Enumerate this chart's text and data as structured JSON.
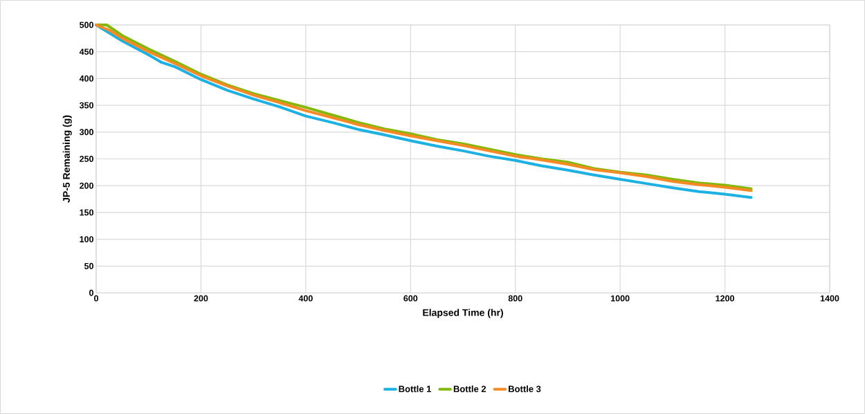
{
  "chart_data": {
    "type": "line",
    "xlabel": "Elapsed Time (hr)",
    "ylabel": "JP-5 Remaining (g)",
    "xlim": [
      0,
      1400
    ],
    "xticks": [
      0,
      200,
      400,
      600,
      800,
      1000,
      1200,
      1400
    ],
    "ylim": [
      0,
      500
    ],
    "yticks": [
      0,
      50,
      100,
      150,
      200,
      250,
      300,
      350,
      400,
      450,
      500
    ],
    "grid": true,
    "legend": "bottom",
    "marker": "none",
    "line_style": "solid",
    "series": [
      {
        "name": "Bottle 1",
        "color": "#1cb1e2",
        "x": [
          0,
          25,
          50,
          75,
          100,
          125,
          150,
          200,
          250,
          300,
          350,
          400,
          450,
          500,
          550,
          600,
          650,
          700,
          750,
          800,
          850,
          900,
          950,
          1000,
          1050,
          1100,
          1150,
          1200,
          1250
        ],
        "values": [
          500,
          485,
          470,
          457,
          444,
          430,
          422,
          398,
          378,
          362,
          347,
          330,
          318,
          305,
          295,
          284,
          274,
          265,
          255,
          247,
          237,
          229,
          220,
          212,
          204,
          196,
          189,
          184,
          178
        ]
      },
      {
        "name": "Bottle 2",
        "color": "#84b80b",
        "x": [
          0,
          20,
          50,
          100,
          150,
          200,
          250,
          300,
          350,
          400,
          450,
          500,
          550,
          600,
          650,
          700,
          750,
          800,
          850,
          900,
          950,
          1000,
          1050,
          1100,
          1150,
          1200,
          1250
        ],
        "values": [
          500,
          500,
          480,
          455,
          432,
          408,
          388,
          372,
          359,
          346,
          332,
          318,
          306,
          297,
          286,
          278,
          268,
          258,
          250,
          244,
          232,
          225,
          220,
          212,
          205,
          201,
          194
        ]
      },
      {
        "name": "Bottle 3",
        "color": "#f58a24",
        "x": [
          0,
          25,
          50,
          100,
          150,
          200,
          250,
          300,
          350,
          400,
          450,
          500,
          550,
          600,
          650,
          700,
          750,
          800,
          850,
          900,
          950,
          1000,
          1050,
          1100,
          1150,
          1200,
          1250
        ],
        "values": [
          500,
          490,
          475,
          450,
          428,
          405,
          386,
          369,
          355,
          340,
          327,
          314,
          303,
          293,
          284,
          275,
          265,
          255,
          248,
          240,
          230,
          224,
          217,
          208,
          202,
          197,
          191
        ]
      }
    ]
  }
}
